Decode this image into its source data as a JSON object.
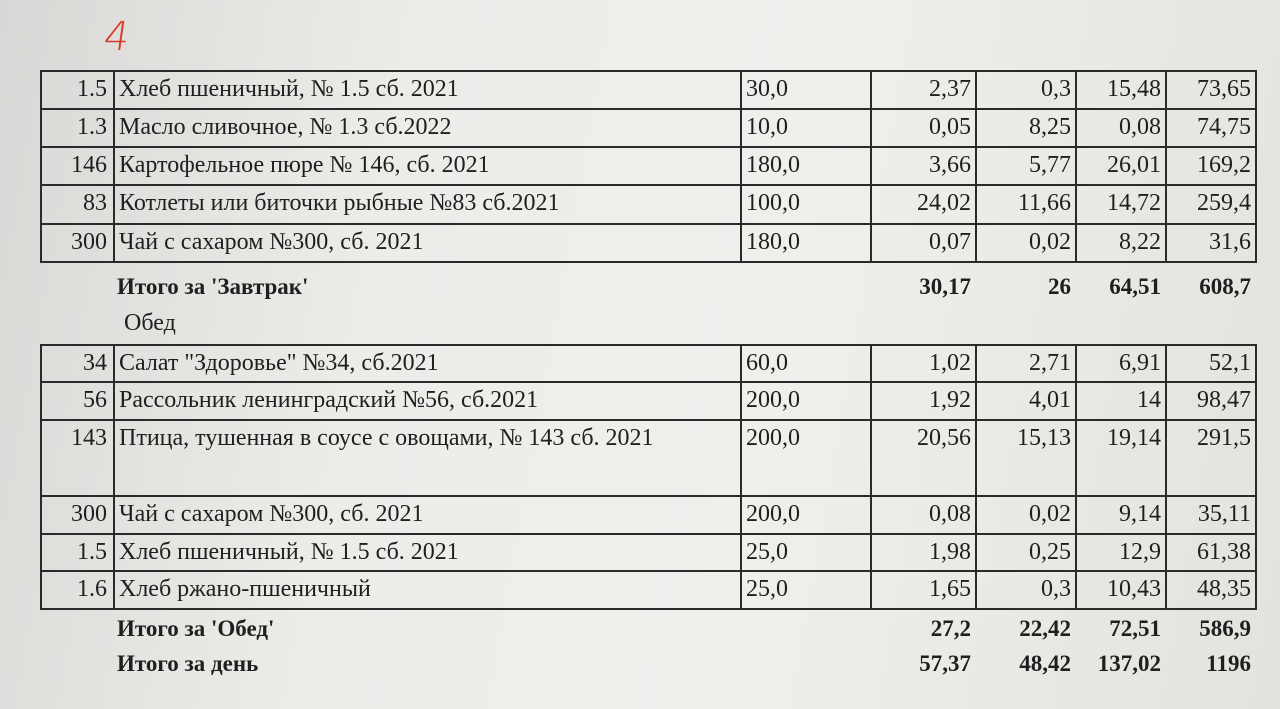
{
  "page_number": "4",
  "breakfast": {
    "rows": [
      [
        "1.5",
        "Хлеб пшеничный, № 1.5 сб. 2021",
        "30,0",
        "2,37",
        "0,3",
        "15,48",
        "73,65"
      ],
      [
        "1.3",
        "Масло сливочное, № 1.3 сб.2022",
        "10,0",
        "0,05",
        "8,25",
        "0,08",
        "74,75"
      ],
      [
        "146",
        "Картофельное пюре № 146, сб. 2021",
        "180,0",
        "3,66",
        "5,77",
        "26,01",
        "169,2"
      ],
      [
        "83",
        "Котлеты или биточки рыбные №83 сб.2021",
        "100,0",
        "24,02",
        "11,66",
        "14,72",
        "259,4"
      ],
      [
        "300",
        "Чай с сахаром №300, сб. 2021",
        "180,0",
        "0,07",
        "0,02",
        "8,22",
        "31,6"
      ]
    ],
    "total": {
      "label": "Итого за 'Завтрак'",
      "values": [
        "30,17",
        "26",
        "64,51",
        "608,7"
      ]
    }
  },
  "lunch": {
    "title": "Обед",
    "rows": [
      [
        "34",
        "Салат \"Здоровье\"  №34, сб.2021",
        "60,0",
        "1,02",
        "2,71",
        "6,91",
        "52,1"
      ],
      [
        "56",
        "Рассольник ленинградский №56, сб.2021",
        "200,0",
        "1,92",
        "4,01",
        "14",
        "98,47"
      ],
      [
        "143",
        "Птица, тушенная в соусе с овощами, № 143 сб. 2021",
        "200,0",
        "20,56",
        "15,13",
        "19,14",
        "291,5"
      ],
      [
        "300",
        "Чай с сахаром №300, сб. 2021",
        "200,0",
        "0,08",
        "0,02",
        "9,14",
        "35,11"
      ],
      [
        "1.5",
        "Хлеб пшеничный, № 1.5 сб. 2021",
        "25,0",
        "1,98",
        "0,25",
        "12,9",
        "61,38"
      ],
      [
        "1.6",
        "Хлеб ржано-пшеничный",
        "25,0",
        "1,65",
        "0,3",
        "10,43",
        "48,35"
      ]
    ],
    "total": {
      "label": "Итого за 'Обед'",
      "values": [
        "27,2",
        "22,42",
        "72,51",
        "586,9"
      ]
    }
  },
  "day_total": {
    "label": "Итого за день",
    "values": [
      "57,37",
      "48,42",
      "137,02",
      "1196"
    ]
  }
}
